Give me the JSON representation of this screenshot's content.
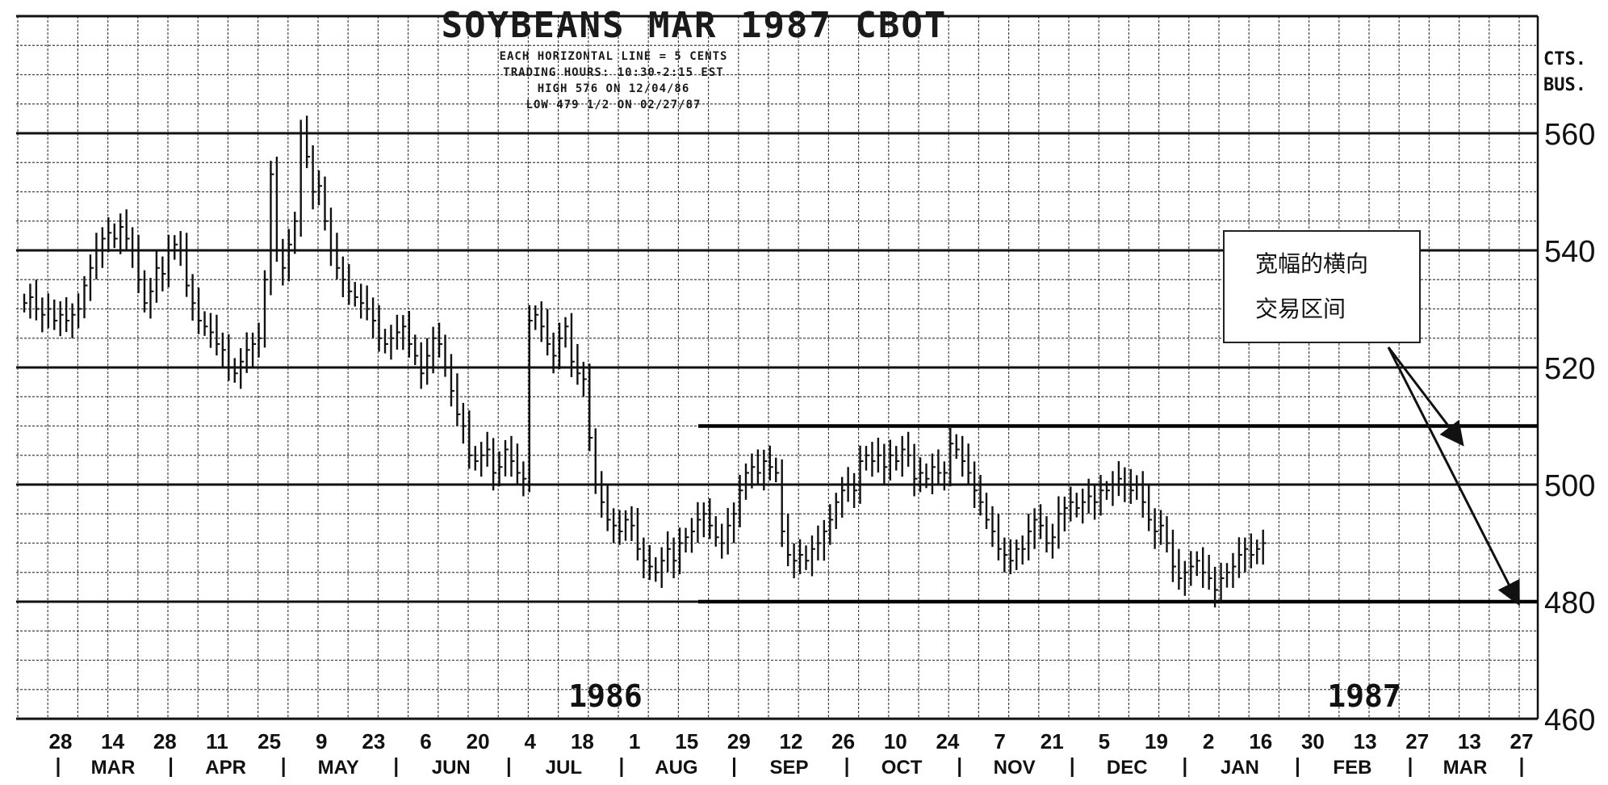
{
  "chart_data": {
    "type": "bar",
    "style": "OHLC daily price bars on grid",
    "title": "SOYBEANS MAR 1987 CBOT",
    "subtitle_lines": [
      "EACH HORIZONTAL LINE = 5 CENTS",
      "TRADING HOURS: 10:30-2:15 EST",
      "HIGH 576 ON 12/04/86",
      "LOW 479 1/2 ON 02/27/87"
    ],
    "ylabel": "CTS. BUS.",
    "ylim": [
      460,
      580
    ],
    "y_ticks": [
      460,
      480,
      500,
      520,
      540,
      560
    ],
    "grid": true,
    "x_day_labels": [
      "28",
      "14",
      "28",
      "11",
      "25",
      "9",
      "23",
      "6",
      "20",
      "4",
      "18",
      "1",
      "15",
      "29",
      "12",
      "26",
      "10",
      "24",
      "7",
      "21",
      "5",
      "19",
      "2",
      "16",
      "30",
      "13",
      "27",
      "13",
      "27"
    ],
    "x_month_labels": [
      "MAR",
      "APR",
      "MAY",
      "JUN",
      "JUL",
      "AUG",
      "SEP",
      "OCT",
      "NOV",
      "DEC",
      "JAN",
      "FEB",
      "MAR"
    ],
    "year_labels": [
      "1986",
      "1987"
    ],
    "range_lines": [
      510,
      480
    ],
    "annotation": [
      "宽幅的横向",
      "交易区间"
    ],
    "series": [
      {
        "values": [
          [
            0,
            531
          ],
          [
            0.5,
            532
          ],
          [
            1,
            530
          ],
          [
            1.5,
            529
          ],
          [
            2,
            530
          ],
          [
            2.5,
            528
          ],
          [
            3,
            529
          ],
          [
            3.5,
            528
          ],
          [
            4,
            529
          ],
          [
            4.5,
            530
          ],
          [
            5,
            534
          ],
          [
            5.5,
            537
          ],
          [
            6,
            540
          ],
          [
            6.5,
            542
          ],
          [
            7,
            543
          ],
          [
            7.5,
            542
          ],
          [
            8,
            544
          ],
          [
            8.5,
            542
          ],
          [
            9,
            540
          ],
          [
            9.5,
            535
          ],
          [
            10,
            531
          ],
          [
            10.5,
            533
          ],
          [
            11,
            537
          ],
          [
            11.5,
            536
          ],
          [
            12,
            540
          ],
          [
            12.5,
            541
          ],
          [
            13,
            540
          ],
          [
            13.5,
            534
          ],
          [
            14,
            531
          ],
          [
            14.5,
            528
          ],
          [
            15,
            527
          ],
          [
            15.5,
            526
          ],
          [
            16,
            524
          ],
          [
            16.5,
            523
          ],
          [
            17,
            520
          ],
          [
            17.5,
            519
          ],
          [
            18,
            521
          ],
          [
            18.5,
            523
          ],
          [
            19,
            524
          ],
          [
            19.5,
            525
          ],
          [
            20,
            535
          ],
          [
            20.5,
            553
          ],
          [
            21,
            540
          ],
          [
            21.5,
            537
          ],
          [
            22,
            541
          ],
          [
            22.5,
            545
          ],
          [
            23,
            560
          ],
          [
            23.5,
            556
          ],
          [
            24,
            550
          ],
          [
            24.5,
            551
          ],
          [
            25,
            545
          ],
          [
            25.5,
            540
          ],
          [
            26,
            537
          ],
          [
            26.5,
            535
          ],
          [
            27,
            533
          ],
          [
            27.5,
            532
          ],
          [
            28,
            531
          ],
          [
            28.5,
            530
          ],
          [
            29,
            528
          ],
          [
            29.5,
            525
          ],
          [
            30,
            524
          ],
          [
            30.5,
            525
          ],
          [
            31,
            526
          ],
          [
            31.5,
            527
          ],
          [
            32,
            524
          ],
          [
            32.5,
            522
          ],
          [
            33,
            519
          ],
          [
            33.5,
            522
          ],
          [
            34,
            525
          ],
          [
            34.5,
            524
          ],
          [
            35,
            520
          ],
          [
            35.5,
            516
          ],
          [
            36,
            512
          ],
          [
            36.5,
            510
          ],
          [
            37,
            505
          ],
          [
            37.5,
            504
          ],
          [
            38,
            505
          ],
          [
            38.5,
            506
          ],
          [
            39,
            502
          ],
          [
            39.5,
            503
          ],
          [
            40,
            506
          ],
          [
            40.5,
            504
          ],
          [
            41,
            502
          ],
          [
            41.5,
            501
          ],
          [
            42,
            528
          ],
          [
            42.5,
            529
          ],
          [
            43,
            527
          ],
          [
            43.5,
            524
          ],
          [
            44,
            522
          ],
          [
            44.5,
            525
          ],
          [
            45,
            527
          ],
          [
            45.5,
            521
          ],
          [
            46,
            519
          ],
          [
            46.5,
            518
          ],
          [
            47,
            508
          ],
          [
            47.5,
            500
          ],
          [
            48,
            497
          ],
          [
            48.5,
            494
          ],
          [
            49,
            493
          ],
          [
            49.5,
            492
          ],
          [
            50,
            494
          ],
          [
            50.5,
            493
          ],
          [
            51,
            489
          ],
          [
            51.5,
            487
          ],
          [
            52,
            486
          ],
          [
            52.5,
            485
          ],
          [
            53,
            487
          ],
          [
            53.5,
            489
          ],
          [
            54,
            487
          ],
          [
            54.5,
            490
          ],
          [
            55,
            491
          ],
          [
            55.5,
            492
          ],
          [
            56,
            494
          ],
          [
            56.5,
            495
          ],
          [
            57,
            493
          ],
          [
            57.5,
            491
          ],
          [
            58,
            490
          ],
          [
            58.5,
            493
          ],
          [
            59,
            495
          ],
          [
            59.5,
            499
          ],
          [
            60,
            502
          ],
          [
            60.5,
            503
          ],
          [
            61,
            502
          ],
          [
            61.5,
            504
          ],
          [
            62,
            503
          ],
          [
            62.5,
            502
          ],
          [
            63,
            492
          ],
          [
            63.5,
            488
          ],
          [
            64,
            487
          ],
          [
            64.5,
            488
          ],
          [
            65,
            487
          ],
          [
            65.5,
            489
          ],
          [
            66,
            490
          ],
          [
            66.5,
            492
          ],
          [
            67,
            494
          ],
          [
            67.5,
            497
          ],
          [
            68,
            499
          ],
          [
            68.5,
            500
          ],
          [
            69,
            499
          ],
          [
            69.5,
            504
          ],
          [
            70,
            505
          ],
          [
            70.5,
            504
          ],
          [
            71,
            505
          ],
          [
            71.5,
            503
          ],
          [
            72,
            505
          ],
          [
            72.5,
            504
          ],
          [
            73,
            506
          ],
          [
            73.5,
            505
          ],
          [
            74,
            501
          ],
          [
            74.5,
            502
          ],
          [
            75,
            501
          ],
          [
            75.5,
            503
          ],
          [
            76,
            502
          ],
          [
            76.5,
            502
          ],
          [
            77,
            507
          ],
          [
            77.5,
            506
          ],
          [
            78,
            504
          ],
          [
            78.5,
            502
          ],
          [
            79,
            499
          ],
          [
            79.5,
            497
          ],
          [
            80,
            494
          ],
          [
            80.5,
            492
          ],
          [
            81,
            489
          ],
          [
            81.5,
            488
          ],
          [
            82,
            487
          ],
          [
            82.5,
            489
          ],
          [
            83,
            489
          ],
          [
            83.5,
            492
          ],
          [
            84,
            494
          ],
          [
            84.5,
            493
          ],
          [
            85,
            490
          ],
          [
            85.5,
            491
          ],
          [
            86,
            495
          ],
          [
            86.5,
            496
          ],
          [
            87,
            497
          ],
          [
            87.5,
            496
          ],
          [
            88,
            497
          ],
          [
            88.5,
            498
          ],
          [
            89,
            497
          ],
          [
            89.5,
            499
          ],
          [
            90,
            499
          ],
          [
            90.5,
            500
          ],
          [
            91,
            501
          ],
          [
            91.5,
            500
          ],
          [
            92,
            499
          ],
          [
            92.5,
            500
          ],
          [
            93,
            497
          ],
          [
            93.5,
            494
          ],
          [
            94,
            492
          ],
          [
            94.5,
            493
          ],
          [
            95,
            490
          ],
          [
            95.5,
            486
          ],
          [
            96,
            484
          ],
          [
            96.5,
            485
          ],
          [
            97,
            486
          ],
          [
            97.5,
            487
          ],
          [
            98,
            485
          ],
          [
            98.5,
            484
          ],
          [
            99,
            482
          ],
          [
            99.5,
            484
          ],
          [
            100,
            485
          ],
          [
            100.5,
            486
          ],
          [
            101,
            488
          ],
          [
            101.5,
            489
          ],
          [
            102,
            488
          ],
          [
            102.5,
            489
          ],
          [
            103,
            490
          ]
        ]
      }
    ]
  }
}
